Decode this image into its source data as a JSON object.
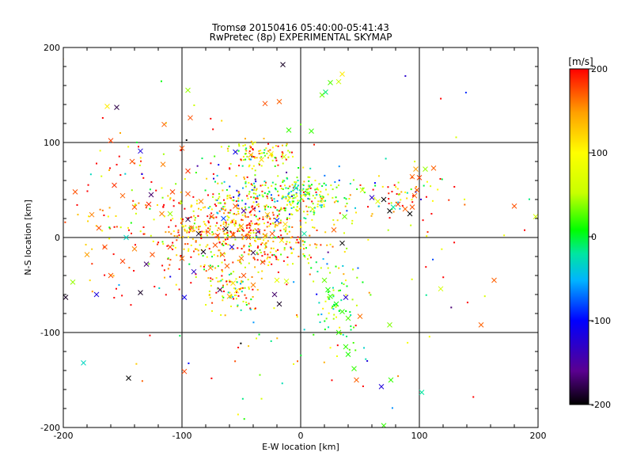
{
  "chart_data": {
    "type": "scatter",
    "title": "Tromsø 20150416 05:40:00-05:41:43",
    "subtitle": "RwPretec (8p) EXPERIMENTAL SKYMAP",
    "xlabel": "E-W location [km]",
    "ylabel": "N-S location [km]",
    "xlim": [
      -200,
      200
    ],
    "ylim": [
      -200,
      200
    ],
    "xticks": [
      -200,
      -100,
      0,
      100,
      200
    ],
    "yticks": [
      -200,
      -100,
      0,
      100,
      200
    ],
    "grid": true,
    "colorbar": {
      "label": "[m/s]",
      "min": -200,
      "max": 200,
      "ticks": [
        200,
        100,
        0,
        -100,
        -200
      ],
      "colors": [
        "#000000",
        "#5a0090",
        "#0000ff",
        "#00b4ff",
        "#00e6a0",
        "#00ff00",
        "#c8ff00",
        "#ffff00",
        "#ffa000",
        "#ff0000"
      ]
    },
    "crosses": [
      {
        "x": -163,
        "y": 138,
        "v": 110
      },
      {
        "x": -155,
        "y": 137,
        "v": -180
      },
      {
        "x": -115,
        "y": 119,
        "v": 170
      },
      {
        "x": -95,
        "y": 155,
        "v": 40
      },
      {
        "x": -93,
        "y": 126,
        "v": 175
      },
      {
        "x": -15,
        "y": 182,
        "v": -190
      },
      {
        "x": 25,
        "y": 163,
        "v": 25
      },
      {
        "x": 32,
        "y": 164,
        "v": 50
      },
      {
        "x": 35,
        "y": 172,
        "v": 110
      },
      {
        "x": 18,
        "y": 150,
        "v": 30
      },
      {
        "x": 21,
        "y": 153,
        "v": -10
      },
      {
        "x": -30,
        "y": 141,
        "v": 175
      },
      {
        "x": -18,
        "y": 143,
        "v": 170
      },
      {
        "x": -10,
        "y": 113,
        "v": 20
      },
      {
        "x": 9,
        "y": 112,
        "v": 20
      },
      {
        "x": -160,
        "y": 102,
        "v": 180
      },
      {
        "x": -190,
        "y": 48,
        "v": 175
      },
      {
        "x": -157,
        "y": 55,
        "v": 185
      },
      {
        "x": -150,
        "y": 44,
        "v": 170
      },
      {
        "x": -142,
        "y": 80,
        "v": 175
      },
      {
        "x": -135,
        "y": 91,
        "v": -120
      },
      {
        "x": -116,
        "y": 77,
        "v": 160
      },
      {
        "x": -100,
        "y": 94,
        "v": 175
      },
      {
        "x": -95,
        "y": 70,
        "v": 185
      },
      {
        "x": -55,
        "y": 90,
        "v": -110
      },
      {
        "x": -42,
        "y": 87,
        "v": 150
      },
      {
        "x": -33,
        "y": 82,
        "v": 120
      },
      {
        "x": -25,
        "y": 88,
        "v": 110
      },
      {
        "x": -14,
        "y": 85,
        "v": 60
      },
      {
        "x": -126,
        "y": 45,
        "v": -170
      },
      {
        "x": -108,
        "y": 48,
        "v": 180
      },
      {
        "x": -95,
        "y": 46,
        "v": 175
      },
      {
        "x": -117,
        "y": 25,
        "v": 160
      },
      {
        "x": -140,
        "y": 32,
        "v": 175
      },
      {
        "x": -128,
        "y": 35,
        "v": 190
      },
      {
        "x": -95,
        "y": 19,
        "v": -180
      },
      {
        "x": -84,
        "y": 38,
        "v": 160
      },
      {
        "x": -75,
        "y": 22,
        "v": 175
      },
      {
        "x": -65,
        "y": 20,
        "v": -80
      },
      {
        "x": -55,
        "y": 33,
        "v": 170
      },
      {
        "x": -48,
        "y": 28,
        "v": -150
      },
      {
        "x": -40,
        "y": 30,
        "v": 185
      },
      {
        "x": -28,
        "y": 24,
        "v": 130
      },
      {
        "x": -20,
        "y": 18,
        "v": -90
      },
      {
        "x": -13,
        "y": 14,
        "v": 120
      },
      {
        "x": -92,
        "y": 10,
        "v": 165
      },
      {
        "x": -86,
        "y": 4,
        "v": -190
      },
      {
        "x": -78,
        "y": 6,
        "v": 170
      },
      {
        "x": -70,
        "y": 2,
        "v": 175
      },
      {
        "x": -63,
        "y": 9,
        "v": -200
      },
      {
        "x": -57,
        "y": 3,
        "v": 180
      },
      {
        "x": -50,
        "y": 12,
        "v": 150
      },
      {
        "x": -44,
        "y": 0,
        "v": 170
      },
      {
        "x": -36,
        "y": 6,
        "v": -160
      },
      {
        "x": -30,
        "y": 2,
        "v": 160
      },
      {
        "x": -24,
        "y": 4,
        "v": 175
      },
      {
        "x": -16,
        "y": -3,
        "v": 110
      },
      {
        "x": -82,
        "y": -15,
        "v": -190
      },
      {
        "x": -72,
        "y": -8,
        "v": 175
      },
      {
        "x": -66,
        "y": -18,
        "v": 170
      },
      {
        "x": -58,
        "y": -10,
        "v": -120
      },
      {
        "x": -50,
        "y": -22,
        "v": 165
      },
      {
        "x": -40,
        "y": -16,
        "v": -180
      },
      {
        "x": -32,
        "y": -26,
        "v": 185
      },
      {
        "x": -62,
        "y": -30,
        "v": 170
      },
      {
        "x": -76,
        "y": -32,
        "v": 160
      },
      {
        "x": -90,
        "y": -36,
        "v": -130
      },
      {
        "x": -100,
        "y": -22,
        "v": 170
      },
      {
        "x": -110,
        "y": -10,
        "v": 180
      },
      {
        "x": -125,
        "y": -18,
        "v": 175
      },
      {
        "x": -140,
        "y": -12,
        "v": 160
      },
      {
        "x": -150,
        "y": -25,
        "v": 180
      },
      {
        "x": -165,
        "y": -10,
        "v": 175
      },
      {
        "x": -180,
        "y": -18,
        "v": 150
      },
      {
        "x": -130,
        "y": -28,
        "v": -170
      },
      {
        "x": -57,
        "y": -48,
        "v": 120
      },
      {
        "x": -54,
        "y": -56,
        "v": 100
      },
      {
        "x": -60,
        "y": -62,
        "v": 140
      },
      {
        "x": -48,
        "y": -40,
        "v": 175
      },
      {
        "x": -68,
        "y": -55,
        "v": -170
      },
      {
        "x": -40,
        "y": -50,
        "v": 160
      },
      {
        "x": -98,
        "y": -63,
        "v": -110
      },
      {
        "x": -135,
        "y": -58,
        "v": -190
      },
      {
        "x": -172,
        "y": -60,
        "v": -120
      },
      {
        "x": -192,
        "y": -47,
        "v": 40
      },
      {
        "x": -198,
        "y": -63,
        "v": -190
      },
      {
        "x": -20,
        "y": -45,
        "v": 80
      },
      {
        "x": -22,
        "y": -60,
        "v": -170
      },
      {
        "x": -18,
        "y": -70,
        "v": -190
      },
      {
        "x": -12,
        "y": -46,
        "v": 60
      },
      {
        "x": 20,
        "y": -45,
        "v": 30
      },
      {
        "x": 23,
        "y": -55,
        "v": 15
      },
      {
        "x": 25,
        "y": -62,
        "v": 20
      },
      {
        "x": 30,
        "y": -70,
        "v": 10
      },
      {
        "x": 35,
        "y": -78,
        "v": 20
      },
      {
        "x": 40,
        "y": -85,
        "v": 25
      },
      {
        "x": 38,
        "y": -63,
        "v": -130
      },
      {
        "x": 32,
        "y": -100,
        "v": 20
      },
      {
        "x": 38,
        "y": -115,
        "v": 20
      },
      {
        "x": 40,
        "y": -123,
        "v": 15
      },
      {
        "x": 45,
        "y": -138,
        "v": 20
      },
      {
        "x": 47,
        "y": -150,
        "v": 170
      },
      {
        "x": 50,
        "y": -83,
        "v": 165
      },
      {
        "x": 75,
        "y": -92,
        "v": 35
      },
      {
        "x": 76,
        "y": -150,
        "v": 20
      },
      {
        "x": 68,
        "y": -157,
        "v": -120
      },
      {
        "x": 70,
        "y": -198,
        "v": 20
      },
      {
        "x": 102,
        "y": -163,
        "v": -20
      },
      {
        "x": 35,
        "y": -6,
        "v": -200
      },
      {
        "x": 37,
        "y": 22,
        "v": 30
      },
      {
        "x": 52,
        "y": 50,
        "v": 60
      },
      {
        "x": 60,
        "y": 42,
        "v": -130
      },
      {
        "x": 65,
        "y": 38,
        "v": 70
      },
      {
        "x": 70,
        "y": 40,
        "v": -200
      },
      {
        "x": 75,
        "y": 28,
        "v": -200
      },
      {
        "x": 78,
        "y": 32,
        "v": -20
      },
      {
        "x": 82,
        "y": 35,
        "v": 180
      },
      {
        "x": 88,
        "y": 30,
        "v": 170
      },
      {
        "x": 92,
        "y": 25,
        "v": -200
      },
      {
        "x": 94,
        "y": 32,
        "v": 175
      },
      {
        "x": 96,
        "y": 44,
        "v": 170
      },
      {
        "x": 98,
        "y": 50,
        "v": 175
      },
      {
        "x": 100,
        "y": 63,
        "v": 180
      },
      {
        "x": 94,
        "y": 64,
        "v": 170
      },
      {
        "x": 97,
        "y": 72,
        "v": 150
      },
      {
        "x": 105,
        "y": 72,
        "v": 40
      },
      {
        "x": 112,
        "y": 73,
        "v": 170
      },
      {
        "x": 118,
        "y": -54,
        "v": 60
      },
      {
        "x": 152,
        "y": -92,
        "v": 170
      },
      {
        "x": 163,
        "y": -45,
        "v": 170
      },
      {
        "x": 180,
        "y": 33,
        "v": 175
      },
      {
        "x": 198,
        "y": 22,
        "v": 60
      },
      {
        "x": -145,
        "y": -148,
        "v": -200
      },
      {
        "x": -183,
        "y": -132,
        "v": -30
      },
      {
        "x": -98,
        "y": -141,
        "v": 180
      },
      {
        "x": 28,
        "y": 8,
        "v": 170
      },
      {
        "x": 10,
        "y": 30,
        "v": 60
      },
      {
        "x": 18,
        "y": 40,
        "v": 120
      },
      {
        "x": 6,
        "y": 46,
        "v": 40
      },
      {
        "x": -4,
        "y": 52,
        "v": -40
      },
      {
        "x": 3,
        "y": 4,
        "v": -20
      },
      {
        "x": -110,
        "y": 25,
        "v": 40
      },
      {
        "x": -170,
        "y": 10,
        "v": 175
      },
      {
        "x": -176,
        "y": 24,
        "v": 160
      },
      {
        "x": -160,
        "y": -40,
        "v": 175
      },
      {
        "x": -147,
        "y": 0,
        "v": -30
      }
    ],
    "dots_note": "dense small-point cloud reproduced from sampled positions"
  }
}
